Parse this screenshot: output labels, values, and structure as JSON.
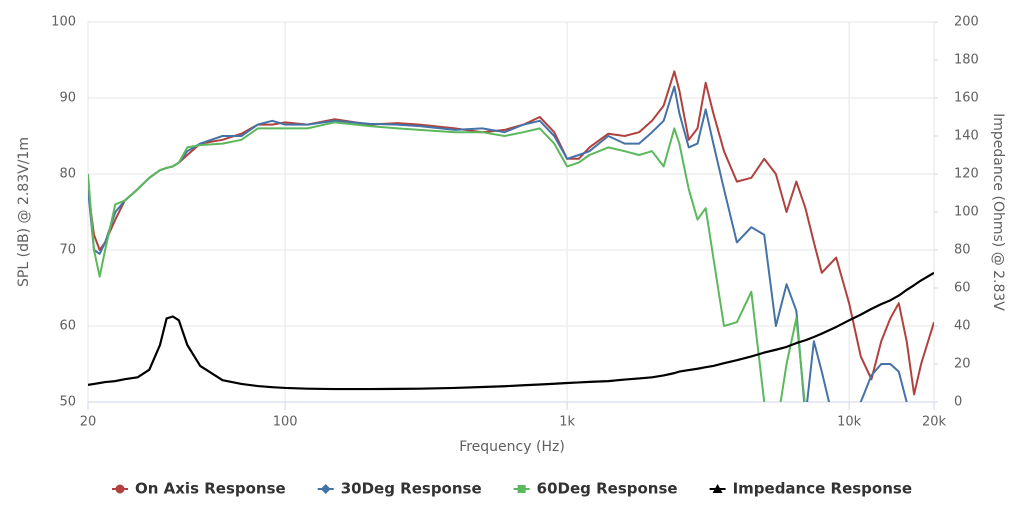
{
  "chart_data": {
    "type": "line",
    "xlabel": "Frequency (Hz)",
    "ylabel": "SPL (dB) @ 2.83V/1m",
    "y2label": "Impedance (Ohms) @ 2.83V",
    "xscale": "log",
    "grid": true,
    "legend": "bottom",
    "xlim": [
      20,
      20000
    ],
    "xticks": [
      20,
      100,
      {
        "value": 1000,
        "label": "1k"
      },
      {
        "value": 10000,
        "label": "10k"
      },
      {
        "value": 20000,
        "label": "20k"
      }
    ],
    "ylim": [
      50,
      100
    ],
    "yticks": [
      50,
      60,
      70,
      80,
      90,
      100
    ],
    "y2lim": [
      0,
      200
    ],
    "y2ticks": [
      0,
      20,
      40,
      60,
      80,
      100,
      120,
      140,
      160,
      180,
      200
    ],
    "x": [
      20,
      21,
      22,
      23,
      25,
      27,
      30,
      33,
      36,
      38,
      40,
      42,
      45,
      50,
      60,
      70,
      80,
      90,
      100,
      120,
      150,
      200,
      250,
      300,
      400,
      500,
      600,
      700,
      800,
      900,
      1000,
      1100,
      1200,
      1400,
      1600,
      1800,
      2000,
      2200,
      2400,
      2500,
      2700,
      2900,
      3100,
      3300,
      3600,
      4000,
      4500,
      5000,
      5500,
      6000,
      6500,
      7000,
      7500,
      8000,
      9000,
      10000,
      11000,
      12000,
      13000,
      14000,
      15000,
      16000,
      17000,
      18000,
      20000
    ],
    "series": [
      {
        "name": "On Axis Response",
        "color": "#b0413e",
        "marker": "circle",
        "values": [
          78,
          72,
          70,
          71,
          74,
          76.5,
          78,
          79.5,
          80.5,
          80.8,
          81,
          81.5,
          82.5,
          84,
          84.5,
          85.3,
          86.5,
          86.5,
          86.8,
          86.5,
          87.2,
          86.5,
          86.7,
          86.5,
          86,
          85.5,
          85.8,
          86.5,
          87.5,
          85.5,
          82,
          82,
          83.5,
          85.3,
          85,
          85.5,
          87,
          89,
          93.5,
          91,
          84.5,
          86,
          92,
          88,
          83,
          79,
          79.5,
          82,
          80,
          75,
          79,
          75.5,
          71,
          67,
          69,
          63,
          56,
          53,
          58,
          61,
          63,
          58,
          51,
          55,
          60.5
        ]
      },
      {
        "name": "30Deg Response",
        "color": "#4572a7",
        "marker": "diamond",
        "values": [
          78,
          70,
          69.5,
          71,
          75,
          76.5,
          78,
          79.5,
          80.5,
          80.8,
          81,
          81.5,
          83,
          84,
          85,
          85,
          86.5,
          87,
          86.5,
          86.5,
          87,
          86.6,
          86.5,
          86.3,
          85.8,
          86,
          85.5,
          86.5,
          87,
          85,
          82,
          82.5,
          83,
          85,
          84,
          84,
          85.5,
          87,
          91.5,
          88,
          83.5,
          84,
          88.5,
          84,
          78,
          71,
          73,
          72,
          60,
          65.5,
          62,
          48,
          58,
          54,
          46,
          48,
          50,
          53.5,
          55,
          55,
          54,
          50,
          47,
          45,
          45
        ]
      },
      {
        "name": "60Deg Response",
        "color": "#5cb85c",
        "marker": "square",
        "values": [
          80,
          70,
          66.5,
          70,
          76,
          76.5,
          78,
          79.5,
          80.5,
          80.8,
          81,
          81.5,
          83.5,
          83.8,
          84,
          84.5,
          86,
          86,
          86,
          86,
          86.8,
          86.3,
          86,
          85.8,
          85.5,
          85.5,
          85,
          85.5,
          86,
          84,
          81,
          81.5,
          82.5,
          83.5,
          83,
          82.5,
          83,
          81,
          86,
          84,
          78,
          74,
          75.5,
          69,
          60,
          60.5,
          64.5,
          50,
          46,
          55,
          61,
          49,
          45,
          null,
          null,
          null,
          null,
          null,
          null,
          null,
          null,
          null,
          null,
          null,
          null
        ]
      },
      {
        "name": "Impedance Response",
        "color": "#000000",
        "marker": "triangle",
        "axis": "y2",
        "values": [
          9,
          9.5,
          10,
          10.5,
          11,
          12,
          13,
          17,
          30,
          44,
          45,
          43,
          30,
          19,
          11.5,
          9.5,
          8.4,
          7.8,
          7.4,
          7,
          6.8,
          6.8,
          6.9,
          7,
          7.4,
          7.9,
          8.3,
          8.8,
          9.2,
          9.6,
          10,
          10.3,
          10.6,
          11,
          11.8,
          12.4,
          13,
          14,
          15.2,
          16,
          16.8,
          17.5,
          18.3,
          19,
          20.4,
          22,
          24,
          26,
          27.5,
          29,
          31,
          32.5,
          34.2,
          36,
          39.5,
          43,
          46,
          49,
          51.5,
          53.5,
          56,
          59,
          61.5,
          64,
          68
        ]
      }
    ]
  }
}
